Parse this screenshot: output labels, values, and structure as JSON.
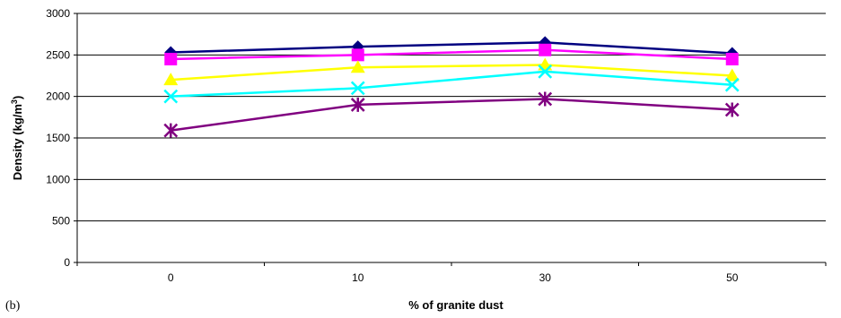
{
  "panel_label": "(b)",
  "chart_data": {
    "type": "line",
    "title": "",
    "xlabel": "% of granite dust",
    "ylabel": "Density (kg/m",
    "ylabel_sup": "3",
    "ylabel_close": ")",
    "categories": [
      "0",
      "10",
      "30",
      "50"
    ],
    "ylim": [
      0,
      3000
    ],
    "yticks": [
      0,
      500,
      1000,
      1500,
      2000,
      2500,
      3000
    ],
    "grid": true,
    "legend": "none",
    "series": [
      {
        "values": [
          2530,
          2600,
          2650,
          2520
        ],
        "color": "#000080",
        "marker": "diamond"
      },
      {
        "values": [
          2450,
          2500,
          2560,
          2450
        ],
        "color": "#ff00ff",
        "marker": "square"
      },
      {
        "values": [
          2200,
          2350,
          2380,
          2250
        ],
        "color": "#ffff00",
        "marker": "triangle"
      },
      {
        "values": [
          2000,
          2100,
          2300,
          2140
        ],
        "color": "#00ffff",
        "marker": "x"
      },
      {
        "values": [
          1590,
          1900,
          1970,
          1840
        ],
        "color": "#800080",
        "marker": "asterisk"
      }
    ]
  }
}
